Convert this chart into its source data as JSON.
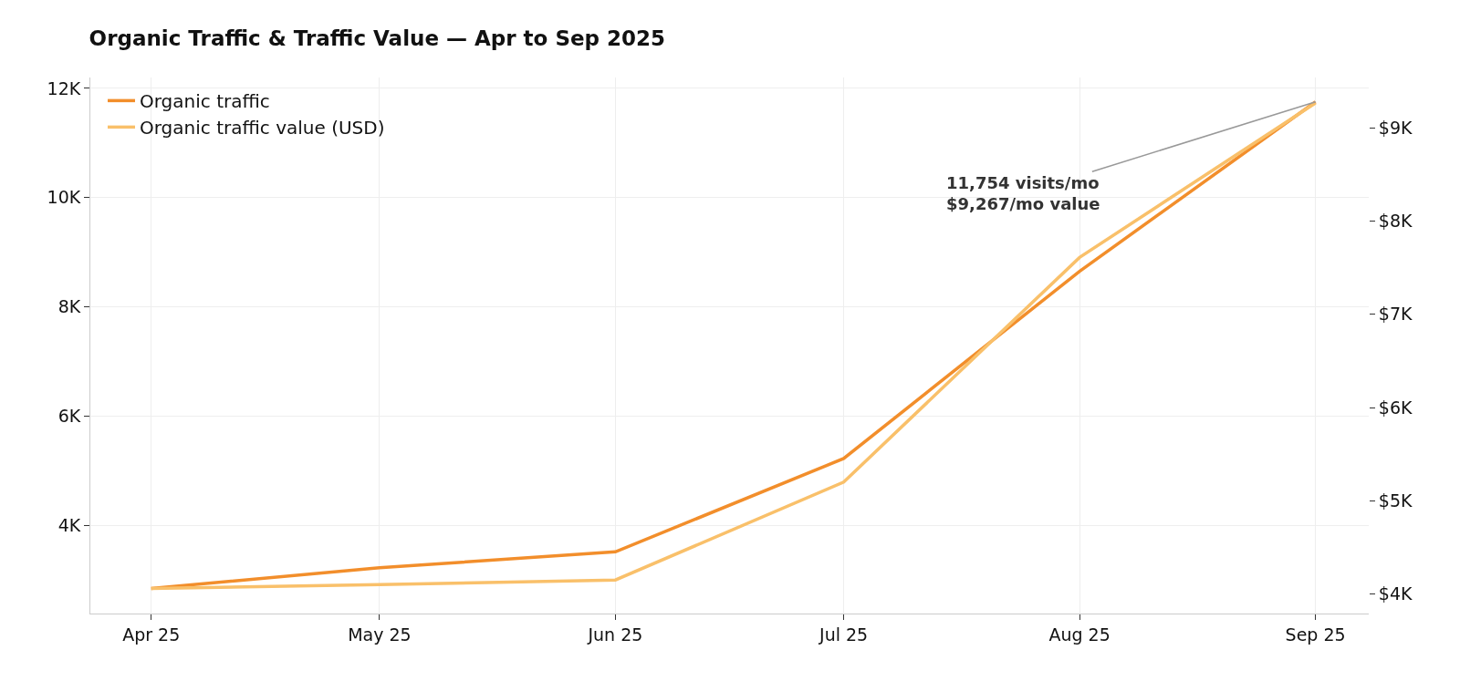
{
  "chart_data": {
    "type": "line",
    "title": "Organic Traffic & Traffic Value — Apr to Sep 2025",
    "x": [
      "2025-04",
      "2025-05",
      "2025-06",
      "2025-07",
      "2025-08",
      "2025-09"
    ],
    "series": [
      {
        "name": "Organic traffic",
        "color": "#f28e2b",
        "values": [
          2840,
          3220,
          3510,
          5220,
          8650,
          11754
        ]
      },
      {
        "name": "Organic traffic value (USD)",
        "color": "#f9c06a",
        "axis": "y2",
        "values": [
          4060,
          4100,
          4150,
          5200,
          7610,
          9267
        ]
      }
    ],
    "xlim": [
      "2025-03-24",
      "2025-09-08"
    ],
    "xticks": [
      {
        "value": "2025-04",
        "label": "Apr 25"
      },
      {
        "value": "2025-05",
        "label": "May 25"
      },
      {
        "value": "2025-06",
        "label": "Jun 25"
      },
      {
        "value": "2025-07",
        "label": "Jul 25"
      },
      {
        "value": "2025-08",
        "label": "Aug 25"
      },
      {
        "value": "2025-09",
        "label": "Sep 25"
      }
    ],
    "ylim": [
      2380,
      12200
    ],
    "yticks": [
      {
        "value": 4000,
        "label": "4K"
      },
      {
        "value": 6000,
        "label": "6K"
      },
      {
        "value": 8000,
        "label": "8K"
      },
      {
        "value": 10000,
        "label": "10K"
      },
      {
        "value": 12000,
        "label": "12K"
      }
    ],
    "y2lim": [
      3790,
      9540
    ],
    "y2ticks": [
      {
        "value": 4000,
        "label": "$4K"
      },
      {
        "value": 5000,
        "label": "$5K"
      },
      {
        "value": 6000,
        "label": "$6K"
      },
      {
        "value": 7000,
        "label": "$7K"
      },
      {
        "value": 8000,
        "label": "$8K"
      },
      {
        "value": 9000,
        "label": "$9K"
      }
    ],
    "annotations": [
      {
        "text": "11,754 visits/mo\n$9,267/mo value",
        "x": "2025-09",
        "y": 11754
      }
    ],
    "grid": true,
    "legend": "top left",
    "line_style": "solid",
    "marker": "none"
  }
}
